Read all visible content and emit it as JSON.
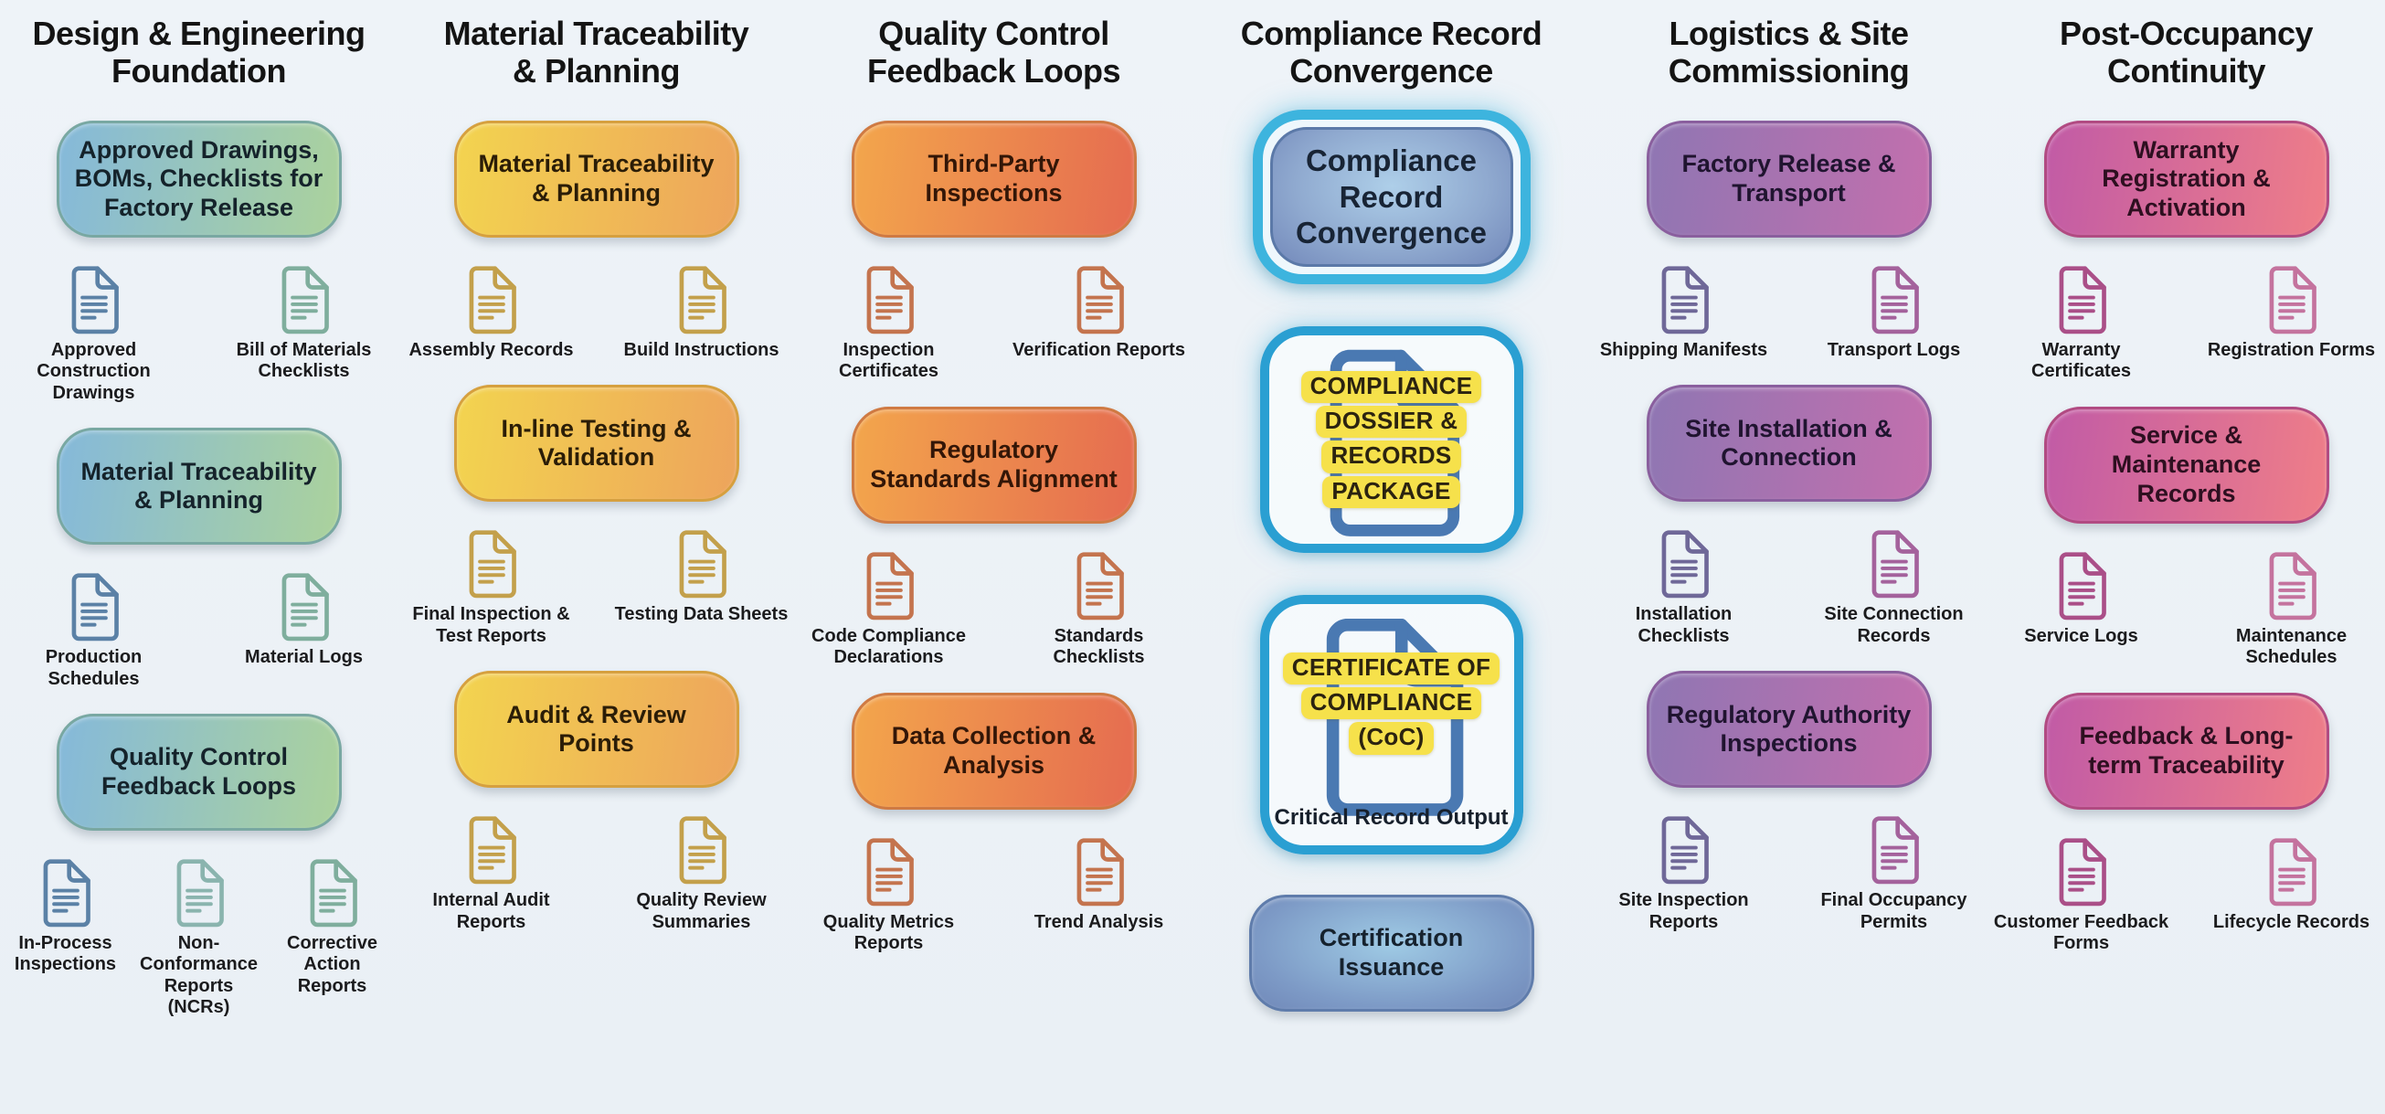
{
  "page": {
    "background": "#ecf1f6",
    "glow_accent": "#3db4de",
    "highlight_yellow": "#f6e14b"
  },
  "columns": [
    {
      "id": "design-engineering-foundation",
      "title": [
        "Design & Engineering",
        "Foundation"
      ],
      "theme": {
        "g1": "#85b9da",
        "g2": "#abd29c",
        "border": "#79a8a2",
        "text": "#15232b"
      },
      "items": [
        {
          "type": "box",
          "label": "Approved Drawings, BOMs, Checklists for Factory Release"
        },
        {
          "type": "docs",
          "docs": [
            {
              "label": "Approved Construction Drawings",
              "color": "#5b81a6"
            },
            {
              "label": "Bill of Materials Checklists",
              "color": "#7fae9d"
            }
          ]
        },
        {
          "type": "box",
          "label": "Material Traceability & Planning"
        },
        {
          "type": "docs",
          "docs": [
            {
              "label": "Production Schedules",
              "color": "#5b81a6"
            },
            {
              "label": "Material Logs",
              "color": "#7fae9d"
            }
          ]
        },
        {
          "type": "box",
          "label": "Quality Control Feedback Loops"
        },
        {
          "type": "docs",
          "docs": [
            {
              "label": "In-Process Inspections",
              "color": "#5b81a6"
            },
            {
              "label": "Non-Conformance Reports (NCRs)",
              "color": "#8ab4ae"
            },
            {
              "label": "Corrective Action Reports",
              "color": "#7fae9d"
            }
          ]
        }
      ]
    },
    {
      "id": "material-traceability-planning",
      "title": [
        "Material Traceability",
        "& Planning"
      ],
      "theme": {
        "g1": "#f3d44f",
        "g2": "#eda45c",
        "border": "#d6a03f",
        "text": "#2b1d07"
      },
      "items": [
        {
          "type": "box",
          "label": "Material Traceability & Planning"
        },
        {
          "type": "docs",
          "docs": [
            {
              "label": "Assembly Records",
              "color": "#c3a04b"
            },
            {
              "label": "Build Instructions",
              "color": "#c3a04b"
            }
          ]
        },
        {
          "type": "box",
          "label": "In-line Testing & Validation"
        },
        {
          "type": "docs",
          "docs": [
            {
              "label": "Final Inspection & Test Reports",
              "color": "#c3a04b"
            },
            {
              "label": "Testing Data Sheets",
              "color": "#c3a04b"
            }
          ]
        },
        {
          "type": "box",
          "label": "Audit & Review Points"
        },
        {
          "type": "docs",
          "docs": [
            {
              "label": "Internal Audit Reports",
              "color": "#c3a04b"
            },
            {
              "label": "Quality Review Summaries",
              "color": "#c3a04b"
            }
          ]
        }
      ]
    },
    {
      "id": "quality-control-feedback-loops",
      "title": [
        "Quality Control",
        "Feedback Loops"
      ],
      "theme": {
        "g1": "#f3a64c",
        "g2": "#e56b50",
        "border": "#cf7a43",
        "text": "#331607"
      },
      "items": [
        {
          "type": "box",
          "label": "Third-Party Inspections"
        },
        {
          "type": "docs",
          "docs": [
            {
              "label": "Inspection Certificates",
              "color": "#c4744e"
            },
            {
              "label": "Verification Reports",
              "color": "#c4744e"
            }
          ]
        },
        {
          "type": "box",
          "label": "Regulatory Standards Alignment"
        },
        {
          "type": "docs",
          "docs": [
            {
              "label": "Code Compliance Declarations",
              "color": "#c4744e"
            },
            {
              "label": "Standards Checklists",
              "color": "#c4744e"
            }
          ]
        },
        {
          "type": "box",
          "label": "Data Collection & Analysis"
        },
        {
          "type": "docs",
          "docs": [
            {
              "label": "Quality Metrics Reports",
              "color": "#c4744e"
            },
            {
              "label": "Trend Analysis",
              "color": "#c4744e"
            }
          ]
        }
      ]
    },
    {
      "id": "compliance-record-convergence",
      "title": [
        "Compliance Record",
        "Convergence"
      ],
      "theme": {
        "ring": "#3db4de",
        "frame_border": "#2a9fd2",
        "doc_color": "#4a79b2",
        "highlight": "#f6e14b",
        "highlight_text": "#2b2310",
        "inner_g1": "#aecfe9",
        "inner_g2": "#7288ba",
        "inner_border": "#5b79a8",
        "text": "#182435"
      },
      "items": [
        {
          "type": "convergence",
          "label": "Compliance Record Convergence"
        },
        {
          "type": "frame",
          "variant": "dossier",
          "lines": [
            "COMPLIANCE",
            "DOSSIER &",
            "RECORDS",
            "PACKAGE"
          ]
        },
        {
          "type": "frame",
          "variant": "coc",
          "lines": [
            "CERTIFICATE OF",
            "COMPLIANCE",
            "(CoC)"
          ],
          "caption": "Critical Record Output"
        },
        {
          "type": "box",
          "label": "Certification Issuance",
          "radial": true,
          "theme": {
            "border": "#5f7cab",
            "text": "#16222e"
          }
        }
      ]
    },
    {
      "id": "logistics-site-commissioning",
      "title": [
        "Logistics & Site",
        "Commissioning"
      ],
      "theme": {
        "g1": "#8f76b3",
        "g2": "#c36fad",
        "border": "#8a5f9e",
        "text": "#201430"
      },
      "items": [
        {
          "type": "box",
          "label": "Factory Release & Transport"
        },
        {
          "type": "docs",
          "docs": [
            {
              "label": "Shipping Manifests",
              "color": "#6f6898"
            },
            {
              "label": "Transport Logs",
              "color": "#a4629c"
            }
          ]
        },
        {
          "type": "box",
          "label": "Site Installation & Connection"
        },
        {
          "type": "docs",
          "docs": [
            {
              "label": "Installation Checklists",
              "color": "#6f6898"
            },
            {
              "label": "Site Connection Records",
              "color": "#a4629c"
            }
          ]
        },
        {
          "type": "box",
          "label": "Regulatory Authority Inspections"
        },
        {
          "type": "docs",
          "docs": [
            {
              "label": "Site Inspection Reports",
              "color": "#6f6898"
            },
            {
              "label": "Final Occupancy Permits",
              "color": "#a4629c"
            }
          ]
        }
      ]
    },
    {
      "id": "post-occupancy-continuity",
      "title": [
        "Post-Occupancy",
        "Continuity"
      ],
      "theme": {
        "g1": "#c15ba6",
        "g2": "#ef7e88",
        "border": "#b14b82",
        "text": "#2e0f20"
      },
      "items": [
        {
          "type": "box",
          "label": "Warranty Registration & Activation"
        },
        {
          "type": "docs",
          "docs": [
            {
              "label": "Warranty Certificates",
              "color": "#aa4f88"
            },
            {
              "label": "Registration Forms",
              "color": "#c4739e"
            }
          ]
        },
        {
          "type": "box",
          "label": "Service & Maintenance Records"
        },
        {
          "type": "docs",
          "docs": [
            {
              "label": "Service Logs",
              "color": "#aa4f88"
            },
            {
              "label": "Maintenance Schedules",
              "color": "#c4739e"
            }
          ]
        },
        {
          "type": "box",
          "label": "Feedback & Long-term Traceability"
        },
        {
          "type": "docs",
          "docs": [
            {
              "label": "Customer Feedback Forms",
              "color": "#aa4f88"
            },
            {
              "label": "Lifecycle Records",
              "color": "#c4739e"
            }
          ]
        }
      ]
    }
  ]
}
